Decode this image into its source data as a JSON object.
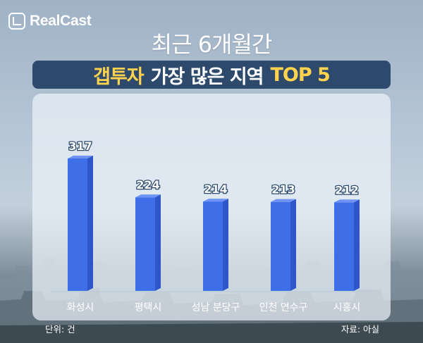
{
  "brand": {
    "name": "RealCast",
    "icon": "realcast-logo-icon"
  },
  "header": {
    "title_line1": "최근 6개월간",
    "title_highlight_1": "갭투자",
    "title_middle": "가장 많은 지역",
    "title_highlight_2": "TOP 5"
  },
  "colors": {
    "bar": "#3f6fe8",
    "bar_dark": "#2f56c9",
    "bar_top": "#6f93f5",
    "highlight": "#ffd34d",
    "title_bar_bg": "#2d4a6d"
  },
  "chart_data": {
    "type": "bar",
    "categories": [
      "화성시",
      "평택시",
      "성남 분당구",
      "인천 연수구",
      "시흥시"
    ],
    "values": [
      317,
      224,
      214,
      213,
      212
    ],
    "ylim": [
      0,
      350
    ],
    "grid": false,
    "legend": "none"
  },
  "footer": {
    "unit": "단위: 건",
    "source": "자료: 아실"
  }
}
